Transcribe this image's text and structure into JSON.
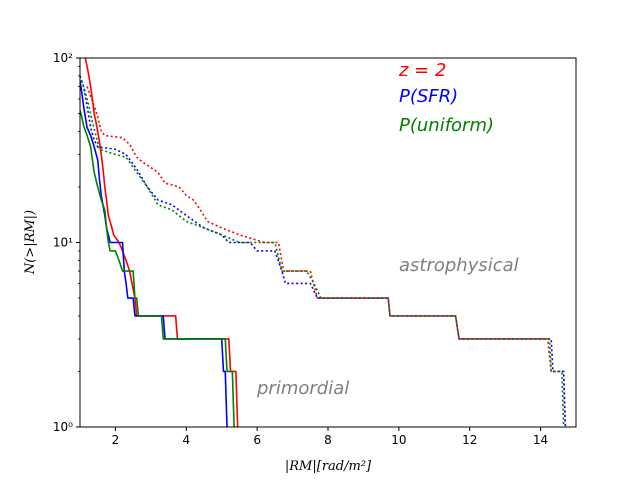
{
  "chart_data": {
    "type": "line",
    "title": "",
    "xlabel": "|RM|[rad/m²]",
    "ylabel": "N(>|RM|)",
    "xlim": [
      1,
      15
    ],
    "ylim": [
      1,
      100
    ],
    "yscale": "log",
    "grid": false,
    "x_ticks": [
      2,
      4,
      6,
      8,
      10,
      12,
      14
    ],
    "x_tick_labels": [
      "2",
      "4",
      "6",
      "8",
      "10",
      "12",
      "14"
    ],
    "y_ticks": [
      1,
      10,
      100
    ],
    "y_tick_labels": [
      "10⁰",
      "10¹",
      "10²"
    ],
    "legend": {
      "position": "top-right",
      "entries": [
        {
          "label": "z = 2",
          "color": "#ff0000"
        },
        {
          "label": "P(SFR)",
          "color": "#0000ff"
        },
        {
          "label": "P(uniform)",
          "color": "#008000"
        }
      ]
    },
    "annotations": [
      {
        "text": "astrophysical",
        "x": 10,
        "y": 7,
        "color": "#808080"
      },
      {
        "text": "primordial",
        "x": 6,
        "y": 1.55,
        "color": "#808080"
      }
    ],
    "series": [
      {
        "name": "z = 2 primordial",
        "color": "#ff0000",
        "style": "solid",
        "points": [
          [
            1.15,
            100
          ],
          [
            1.2,
            90
          ],
          [
            1.25,
            80
          ],
          [
            1.3,
            70
          ],
          [
            1.35,
            60
          ],
          [
            1.4,
            50
          ],
          [
            1.45,
            45
          ],
          [
            1.5,
            40
          ],
          [
            1.55,
            35
          ],
          [
            1.6,
            30
          ],
          [
            1.65,
            25
          ],
          [
            1.7,
            20
          ],
          [
            1.75,
            17
          ],
          [
            1.8,
            14
          ],
          [
            1.85,
            13
          ],
          [
            1.9,
            12
          ],
          [
            1.95,
            11
          ],
          [
            2.1,
            10
          ],
          [
            2.2,
            9
          ],
          [
            2.3,
            8
          ],
          [
            2.4,
            7
          ],
          [
            2.55,
            5
          ],
          [
            2.6,
            4
          ],
          [
            3.7,
            4
          ],
          [
            3.75,
            3
          ],
          [
            5.2,
            3
          ],
          [
            5.25,
            2
          ],
          [
            5.4,
            2
          ],
          [
            5.45,
            1
          ]
        ]
      },
      {
        "name": "P(SFR) primordial",
        "color": "#0000ff",
        "style": "solid",
        "points": [
          [
            1,
            75
          ],
          [
            1.05,
            65
          ],
          [
            1.1,
            55
          ],
          [
            1.15,
            48
          ],
          [
            1.2,
            42
          ],
          [
            1.3,
            38
          ],
          [
            1.4,
            33
          ],
          [
            1.5,
            28
          ],
          [
            1.55,
            22
          ],
          [
            1.6,
            18
          ],
          [
            1.7,
            14
          ],
          [
            1.75,
            12
          ],
          [
            1.8,
            11
          ],
          [
            1.85,
            10
          ],
          [
            2.2,
            10
          ],
          [
            2.25,
            7
          ],
          [
            2.3,
            6
          ],
          [
            2.35,
            5
          ],
          [
            2.5,
            5
          ],
          [
            2.55,
            4
          ],
          [
            3.35,
            4
          ],
          [
            3.4,
            3
          ],
          [
            5.0,
            3
          ],
          [
            5.05,
            2
          ],
          [
            5.1,
            2
          ],
          [
            5.15,
            1
          ]
        ]
      },
      {
        "name": "P(uniform) primordial",
        "color": "#008000",
        "style": "solid",
        "points": [
          [
            1,
            52
          ],
          [
            1.05,
            48
          ],
          [
            1.1,
            43
          ],
          [
            1.2,
            38
          ],
          [
            1.3,
            33
          ],
          [
            1.35,
            28
          ],
          [
            1.4,
            24
          ],
          [
            1.5,
            20
          ],
          [
            1.6,
            17
          ],
          [
            1.7,
            15
          ],
          [
            1.75,
            12
          ],
          [
            1.8,
            10
          ],
          [
            1.85,
            9
          ],
          [
            2.0,
            9
          ],
          [
            2.1,
            8
          ],
          [
            2.2,
            7
          ],
          [
            2.5,
            7
          ],
          [
            2.55,
            5
          ],
          [
            2.6,
            5
          ],
          [
            2.65,
            4
          ],
          [
            3.3,
            4
          ],
          [
            3.35,
            3
          ],
          [
            5.1,
            3
          ],
          [
            5.15,
            2
          ],
          [
            5.3,
            2
          ],
          [
            5.35,
            1
          ]
        ]
      },
      {
        "name": "z = 2 astrophysical",
        "color": "#ff0000",
        "style": "dotted",
        "points": [
          [
            1.2,
            70
          ],
          [
            1.3,
            62
          ],
          [
            1.4,
            55
          ],
          [
            1.5,
            48
          ],
          [
            1.6,
            40
          ],
          [
            1.7,
            38
          ],
          [
            2.2,
            37
          ],
          [
            2.4,
            34
          ],
          [
            2.6,
            29
          ],
          [
            2.8,
            27
          ],
          [
            3.2,
            24
          ],
          [
            3.4,
            21
          ],
          [
            3.8,
            20
          ],
          [
            4.0,
            18
          ],
          [
            4.2,
            17
          ],
          [
            4.4,
            15
          ],
          [
            4.6,
            13
          ],
          [
            5.0,
            12
          ],
          [
            5.5,
            11
          ],
          [
            6.2,
            10
          ],
          [
            6.6,
            10
          ],
          [
            6.75,
            7
          ],
          [
            7.5,
            7
          ],
          [
            7.7,
            5
          ],
          [
            9.7,
            5
          ],
          [
            9.75,
            4
          ],
          [
            11.6,
            4
          ],
          [
            11.7,
            3
          ],
          [
            14.2,
            3
          ],
          [
            14.3,
            2
          ],
          [
            14.65,
            2
          ],
          [
            14.7,
            1
          ]
        ]
      },
      {
        "name": "P(SFR) astrophysical",
        "color": "#0000ff",
        "style": "dotted",
        "points": [
          [
            1,
            80
          ],
          [
            1.1,
            70
          ],
          [
            1.2,
            55
          ],
          [
            1.3,
            42
          ],
          [
            1.4,
            36
          ],
          [
            1.5,
            33
          ],
          [
            2.0,
            32
          ],
          [
            2.3,
            30
          ],
          [
            2.6,
            25
          ],
          [
            2.9,
            20
          ],
          [
            3.2,
            17
          ],
          [
            3.6,
            16
          ],
          [
            4.0,
            14
          ],
          [
            4.5,
            12
          ],
          [
            5.0,
            11
          ],
          [
            5.2,
            10
          ],
          [
            5.8,
            10
          ],
          [
            6.0,
            9
          ],
          [
            6.5,
            9
          ],
          [
            6.7,
            7
          ],
          [
            6.8,
            6
          ],
          [
            7.5,
            6
          ],
          [
            7.7,
            5
          ],
          [
            9.7,
            5
          ],
          [
            9.75,
            4
          ],
          [
            11.6,
            4
          ],
          [
            11.7,
            3
          ],
          [
            14.3,
            3
          ],
          [
            14.35,
            2
          ],
          [
            14.65,
            2
          ],
          [
            14.7,
            1
          ]
        ]
      },
      {
        "name": "P(uniform) astrophysical",
        "color": "#008000",
        "style": "dotted",
        "points": [
          [
            1.05,
            75
          ],
          [
            1.15,
            65
          ],
          [
            1.25,
            55
          ],
          [
            1.35,
            45
          ],
          [
            1.45,
            38
          ],
          [
            1.55,
            32
          ],
          [
            2.0,
            30
          ],
          [
            2.3,
            29
          ],
          [
            2.6,
            24
          ],
          [
            2.9,
            20
          ],
          [
            3.2,
            16
          ],
          [
            3.6,
            15
          ],
          [
            4.0,
            13
          ],
          [
            4.5,
            12
          ],
          [
            5.0,
            11
          ],
          [
            5.5,
            10
          ],
          [
            6.5,
            10
          ],
          [
            6.7,
            7
          ],
          [
            7.4,
            7
          ],
          [
            7.6,
            6
          ],
          [
            7.8,
            5
          ],
          [
            9.7,
            5
          ],
          [
            9.75,
            4
          ],
          [
            11.6,
            4
          ],
          [
            11.7,
            3
          ],
          [
            14.25,
            3
          ],
          [
            14.3,
            2
          ],
          [
            14.6,
            2
          ],
          [
            14.65,
            1
          ]
        ]
      }
    ]
  }
}
